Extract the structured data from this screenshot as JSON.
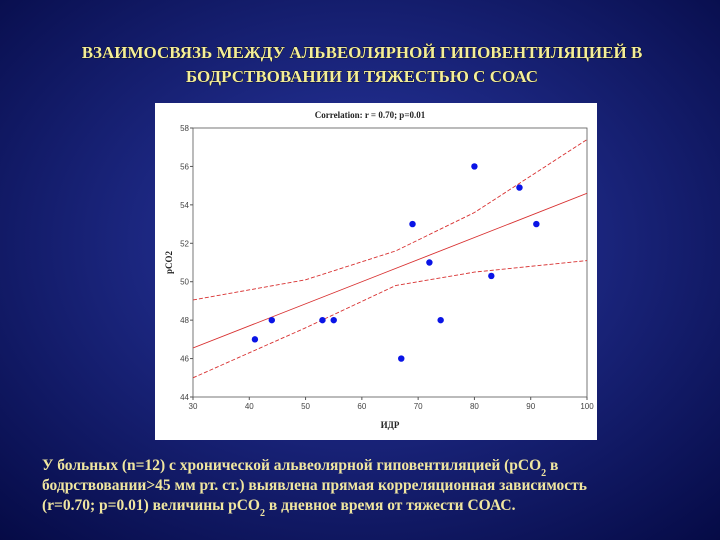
{
  "slide_title": [
    "ВЗАИМОСВЯЗЬ МЕЖДУ АЛЬВЕОЛЯРНОЙ ГИПОВЕНТИЛЯЦИЕЙ В",
    "БОДРСТВОВАНИИ И ТЯЖЕСТЬЮ С СОАС"
  ],
  "chart_data": {
    "type": "scatter",
    "title": "Correlation: r = 0.70; p=0.01",
    "xlabel": "ИДР",
    "ylabel": "pCO2",
    "x": [
      41,
      44,
      53,
      55,
      67,
      69,
      72,
      74,
      80,
      83,
      88,
      91
    ],
    "y": [
      47,
      48,
      48,
      48,
      46,
      53,
      51,
      48,
      56,
      50.3,
      54.9,
      53
    ],
    "color": "#0a14e6",
    "xlim": [
      30,
      100
    ],
    "ylim": [
      44,
      58
    ],
    "xticks": [
      30,
      40,
      50,
      60,
      70,
      80,
      90,
      100
    ],
    "yticks": [
      44,
      46,
      48,
      50,
      52,
      54,
      56,
      58
    ],
    "fit_line": {
      "x": [
        30,
        100
      ],
      "y": [
        46.55,
        54.6
      ],
      "color": "#d83030"
    },
    "confidence_band": {
      "x": [
        30,
        50,
        66,
        80,
        100
      ],
      "upper": [
        49.05,
        50.1,
        51.6,
        53.6,
        57.4
      ],
      "lower": [
        45.0,
        47.6,
        49.8,
        50.5,
        51.1
      ],
      "color": "#d83030"
    }
  },
  "body": [
    [
      {
        "text": "У больных (n=12) с хронической альвеолярной гиповентиляцией (pCO"
      },
      {
        "sub": "2"
      },
      {
        "text": " в"
      }
    ],
    [
      {
        "text": "бодрствовании>45 мм рт. ст.) выявлена прямая корреляционная зависимость"
      }
    ],
    [
      {
        "text": "(r=0.70; p=0.01)  величины pCO"
      },
      {
        "sub": "2"
      },
      {
        "text": " в дневное время от тяжести СОАС."
      }
    ]
  ]
}
